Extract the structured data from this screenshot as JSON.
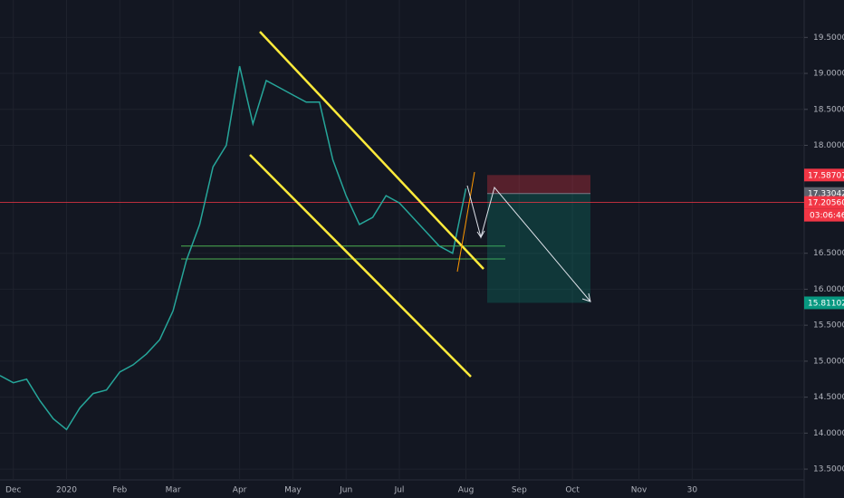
{
  "chart_data": {
    "type": "line",
    "categories": [
      null,
      "Dec",
      null,
      null,
      null,
      "2020",
      null,
      null,
      null,
      "Feb",
      null,
      null,
      null,
      "Mar",
      null,
      null,
      null,
      null,
      "Apr",
      null,
      null,
      null,
      "May",
      null,
      null,
      null,
      "Jun",
      null,
      null,
      null,
      "Jul",
      null,
      null,
      null,
      null,
      "Aug",
      null,
      null,
      null,
      "Sep",
      null,
      null,
      null,
      "Oct",
      null,
      null,
      null,
      null,
      "Nov",
      null,
      null,
      null,
      "30",
      null,
      null,
      null,
      null,
      null,
      null,
      null,
      null
    ],
    "values": [
      14.8,
      14.7,
      14.75,
      14.45,
      14.2,
      14.05,
      14.35,
      14.55,
      14.6,
      14.85,
      14.95,
      15.1,
      15.3,
      15.7,
      16.4,
      16.9,
      17.7,
      18.0,
      19.1,
      18.3,
      18.9,
      18.8,
      18.7,
      18.6,
      18.6,
      17.8,
      17.3,
      16.9,
      17.0,
      17.3,
      17.2,
      17.0,
      16.8,
      16.6,
      16.5,
      17.4,
      null,
      null,
      null,
      null,
      null,
      null,
      null,
      null,
      null,
      null,
      null,
      null,
      null,
      null,
      null,
      null,
      null,
      null,
      null,
      null,
      null,
      null,
      null,
      null,
      null
    ],
    "color": "#26a69a",
    "ylim": [
      13.35,
      20.02
    ],
    "yticks": [
      {
        "value": 19.5,
        "label": "19.50000"
      },
      {
        "value": 19,
        "label": "19.00000"
      },
      {
        "value": 18.5,
        "label": "18.50000"
      },
      {
        "value": 18,
        "label": "18.00000"
      },
      {
        "value": 16.5,
        "label": "16.50000"
      },
      {
        "value": 16,
        "label": "16.00000"
      },
      {
        "value": 15.5,
        "label": "15.50000"
      },
      {
        "value": 15,
        "label": "15.00000"
      },
      {
        "value": 14.5,
        "label": "14.50000"
      },
      {
        "value": 14,
        "label": "14.00000"
      },
      {
        "value": 13.5,
        "label": "13.50000"
      }
    ],
    "grid": true,
    "price_tags": [
      {
        "value": 17.58707,
        "label": "17.58707",
        "color": "#f23645"
      },
      {
        "value": 17.33042,
        "label": "17.33042",
        "color": "#5d606b"
      },
      {
        "value": 17.2056,
        "label": "17.20560",
        "color": "#f23645"
      },
      {
        "value": 15.81102,
        "label": "15.81102",
        "color": "#089981"
      }
    ],
    "countdown": "03:06:46",
    "levels": [
      16.6,
      16.42
    ],
    "level_color": "#4caf50"
  }
}
